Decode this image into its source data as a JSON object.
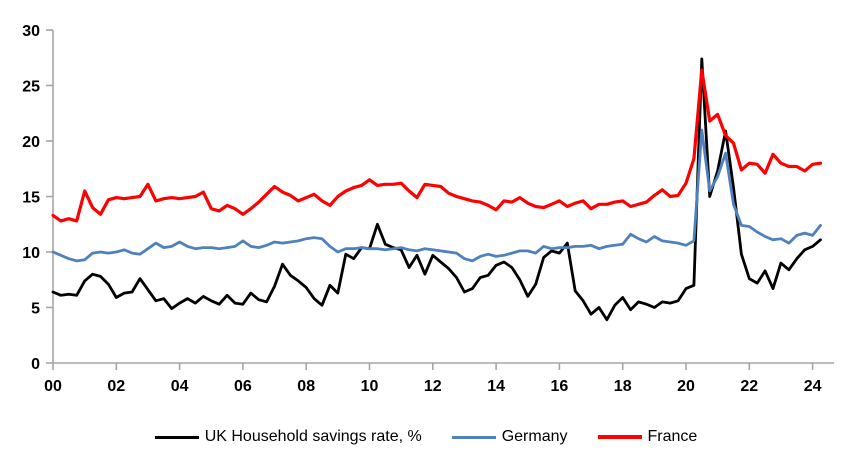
{
  "chart_data": {
    "type": "line",
    "title": "",
    "xlabel": "",
    "ylabel": "",
    "frequency": "quarterly",
    "x_start": "2000Q1",
    "x_end": "2024Q2",
    "ylim": [
      0,
      30
    ],
    "y_ticks": [
      0,
      5,
      10,
      15,
      20,
      25,
      30
    ],
    "x_tick_labels": [
      "00",
      "02",
      "04",
      "06",
      "08",
      "10",
      "12",
      "14",
      "16",
      "18",
      "20",
      "22",
      "24"
    ],
    "grid": false,
    "legend_position": "bottom",
    "axis_color": "#A6A6A6",
    "label_color": "#000000",
    "background_color": "#FFFFFF",
    "series": [
      {
        "name": "UK Household savings rate, %",
        "color": "#000000",
        "stroke_width": 2.8,
        "values": [
          6.4,
          6.1,
          6.2,
          6.1,
          7.4,
          8.0,
          7.8,
          7.1,
          5.9,
          6.3,
          6.4,
          7.6,
          6.6,
          5.6,
          5.8,
          4.9,
          5.4,
          5.8,
          5.4,
          6.0,
          5.6,
          5.3,
          6.1,
          5.4,
          5.3,
          6.3,
          5.7,
          5.5,
          6.9,
          8.9,
          7.9,
          7.4,
          6.8,
          5.8,
          5.2,
          7.0,
          6.3,
          9.8,
          9.4,
          10.4,
          10.3,
          12.5,
          10.7,
          10.4,
          10.2,
          8.6,
          9.7,
          8.0,
          9.7,
          9.1,
          8.5,
          7.7,
          6.4,
          6.7,
          7.7,
          7.9,
          8.8,
          9.1,
          8.6,
          7.5,
          6.0,
          7.1,
          9.5,
          10.1,
          9.9,
          10.8,
          6.5,
          5.6,
          4.4,
          5.0,
          3.9,
          5.2,
          5.9,
          4.8,
          5.5,
          5.3,
          5.0,
          5.5,
          5.4,
          5.6,
          6.7,
          7.0,
          27.4,
          15.0,
          17.3,
          20.9,
          15.8,
          9.8,
          7.6,
          7.2,
          8.3,
          6.7,
          9.0,
          8.4,
          9.4,
          10.2,
          10.5,
          11.1
        ]
      },
      {
        "name": "Germany",
        "color": "#4F81BD",
        "stroke_width": 2.8,
        "values": [
          10.0,
          9.7,
          9.4,
          9.2,
          9.3,
          9.9,
          10.0,
          9.9,
          10.0,
          10.2,
          9.9,
          9.8,
          10.3,
          10.8,
          10.4,
          10.5,
          10.9,
          10.5,
          10.3,
          10.4,
          10.4,
          10.3,
          10.4,
          10.5,
          11.0,
          10.5,
          10.4,
          10.6,
          10.9,
          10.8,
          10.9,
          11.0,
          11.2,
          11.3,
          11.2,
          10.5,
          10.0,
          10.3,
          10.3,
          10.4,
          10.3,
          10.3,
          10.2,
          10.3,
          10.4,
          10.2,
          10.1,
          10.3,
          10.2,
          10.1,
          10.0,
          9.9,
          9.4,
          9.2,
          9.6,
          9.8,
          9.6,
          9.7,
          9.9,
          10.1,
          10.1,
          9.9,
          10.5,
          10.3,
          10.4,
          10.4,
          10.5,
          10.5,
          10.6,
          10.3,
          10.5,
          10.6,
          10.7,
          11.6,
          11.2,
          10.9,
          11.4,
          11.0,
          10.9,
          10.8,
          10.6,
          11.0,
          21.0,
          15.5,
          16.8,
          18.9,
          14.3,
          12.4,
          12.3,
          11.8,
          11.4,
          11.1,
          11.2,
          10.8,
          11.5,
          11.7,
          11.5,
          12.4
        ]
      },
      {
        "name": "France",
        "color": "#FF0000",
        "stroke_width": 3.2,
        "values": [
          13.3,
          12.8,
          13.0,
          12.8,
          15.5,
          14.0,
          13.4,
          14.7,
          14.9,
          14.8,
          14.9,
          15.0,
          16.1,
          14.6,
          14.8,
          14.9,
          14.8,
          14.9,
          15.0,
          15.4,
          13.9,
          13.7,
          14.2,
          13.9,
          13.4,
          13.9,
          14.5,
          15.2,
          15.9,
          15.4,
          15.1,
          14.6,
          14.9,
          15.2,
          14.6,
          14.2,
          15.0,
          15.5,
          15.8,
          16.0,
          16.5,
          16.0,
          16.1,
          16.1,
          16.2,
          15.5,
          14.9,
          16.1,
          16.0,
          15.9,
          15.3,
          15.0,
          14.8,
          14.6,
          14.5,
          14.2,
          13.8,
          14.6,
          14.5,
          14.9,
          14.4,
          14.1,
          14.0,
          14.3,
          14.6,
          14.1,
          14.4,
          14.6,
          13.9,
          14.3,
          14.3,
          14.5,
          14.6,
          14.1,
          14.3,
          14.5,
          15.1,
          15.6,
          15.0,
          15.1,
          16.2,
          18.4,
          26.4,
          21.8,
          22.4,
          20.5,
          19.8,
          17.4,
          18.0,
          17.9,
          17.1,
          18.8,
          18.0,
          17.7,
          17.7,
          17.3,
          17.9,
          18.0
        ]
      }
    ]
  },
  "legend": {
    "items": [
      {
        "label": "UK Household savings rate, %"
      },
      {
        "label": "Germany"
      },
      {
        "label": "France"
      }
    ]
  }
}
